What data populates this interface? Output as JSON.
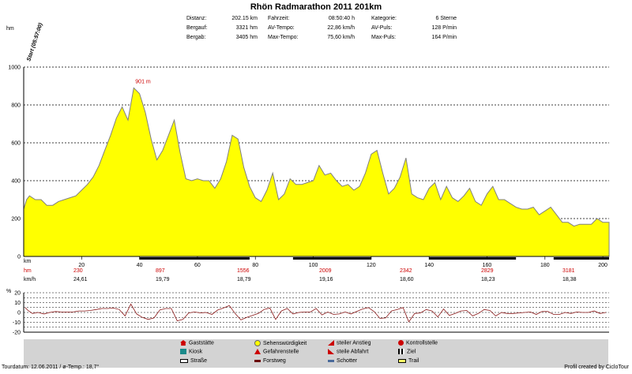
{
  "title": "Rhön Radmarathon 2011 201km",
  "start_label": "Start (05:57:00)",
  "unit_hm": "hm",
  "stats": {
    "distanz_label": "Distanz:",
    "distanz_value": "202.15 km",
    "bergauf_label": "Bergauf:",
    "bergauf_value": "3321 hm",
    "bergab_label": "Bergab:",
    "bergab_value": "3405 hm",
    "fahrzeit_label": "Fahrzeit:",
    "fahrzeit_value": "08:50:40 h",
    "avtempo_label": "AV-Tempo:",
    "avtempo_value": "22,86 km/h",
    "maxtempo_label": "Max-Tempo:",
    "maxtempo_value": "75,60 km/h",
    "kategorie_label": "Kategorie:",
    "kategorie_value": "6 Sterne",
    "avpuls_label": "AV-Puls:",
    "avpuls_value": "128 P/min",
    "maxpuls_label": "Max-Puls:",
    "maxpuls_value": "164 P/min"
  },
  "peak_annotation": "901 m",
  "bottom_rows": {
    "km_label": "km",
    "hm_label": "hm",
    "kmh_label": "km/h",
    "hm_values": [
      "230",
      "897",
      "1556",
      "2009",
      "2342",
      "2829",
      "3181"
    ],
    "kmh_values": [
      "24,61",
      "19,79",
      "18,79",
      "19,16",
      "18,60",
      "18,23",
      "18,38"
    ]
  },
  "gradient_unit": "%",
  "legend": {
    "gaststaette": "Gaststätte",
    "kiosk": "Kiosk",
    "strasse": "Straße",
    "sehenswuerdigkeit": "Sehenswürdigkeit",
    "gefahrenstelle": "Gefahrenstelle",
    "forstweg": "Forstweg",
    "steiler_anstieg": "steiler Anstieg",
    "steile_abfahrt": "steile Abfahrt",
    "schotter": "Schotter",
    "kontrollstelle": "Kontrollstelle",
    "ziel": "Ziel",
    "trail": "Trail"
  },
  "footer_left": "Tourdatum: 12.06.2011 / ø-Temp.: 18,7°",
  "footer_right": "Profil created by CicloTour",
  "colors": {
    "fill": "#ffff00",
    "stroke": "#808080",
    "red": "#cc0000",
    "legend_bg": "#d3d3d3"
  },
  "chart_data": [
    {
      "type": "area",
      "xlabel": "km",
      "ylabel": "hm",
      "xlim": [
        0,
        202.15
      ],
      "ylim": [
        0,
        1000
      ],
      "x_ticks": [
        "20",
        "40",
        "60",
        "80",
        "100",
        "120",
        "140",
        "160",
        "180",
        "200"
      ],
      "y_ticks": [
        "0",
        "200",
        "400",
        "600",
        "800",
        "1000"
      ],
      "grid": true,
      "x": [
        0,
        1,
        2,
        4,
        6,
        8,
        10,
        12,
        14,
        16,
        18,
        20,
        22,
        24,
        26,
        28,
        30,
        32,
        34,
        36,
        38,
        40,
        42,
        44,
        46,
        48,
        50,
        52,
        54,
        56,
        58,
        60,
        62,
        64,
        66,
        68,
        70,
        72,
        74,
        76,
        78,
        80,
        82,
        84,
        86,
        88,
        90,
        92,
        94,
        96,
        98,
        100,
        102,
        104,
        106,
        108,
        110,
        112,
        114,
        116,
        118,
        120,
        122,
        124,
        126,
        128,
        130,
        132,
        134,
        136,
        138,
        140,
        142,
        144,
        146,
        148,
        150,
        152,
        154,
        156,
        158,
        160,
        162,
        164,
        166,
        168,
        170,
        172,
        174,
        176,
        178,
        180,
        182,
        184,
        186,
        188,
        190,
        192,
        194,
        196,
        198,
        200,
        202.15
      ],
      "y": [
        250,
        300,
        320,
        300,
        300,
        270,
        270,
        290,
        300,
        310,
        320,
        350,
        380,
        420,
        480,
        560,
        640,
        730,
        790,
        720,
        890,
        860,
        760,
        620,
        510,
        560,
        640,
        720,
        550,
        410,
        400,
        410,
        400,
        400,
        360,
        410,
        500,
        640,
        620,
        470,
        370,
        310,
        290,
        350,
        440,
        300,
        330,
        410,
        380,
        380,
        390,
        400,
        480,
        430,
        440,
        400,
        370,
        380,
        350,
        370,
        440,
        540,
        560,
        440,
        330,
        360,
        420,
        520,
        330,
        310,
        300,
        360,
        390,
        300,
        370,
        310,
        290,
        320,
        360,
        290,
        270,
        330,
        370,
        300,
        300,
        280,
        260,
        250,
        250,
        260,
        220,
        240,
        260,
        220,
        180,
        180,
        160,
        170,
        170,
        170,
        200,
        180,
        180
      ]
    },
    {
      "type": "line",
      "ylabel": "%",
      "ylim": [
        -20,
        20
      ],
      "y_ticks": [
        "20",
        "10",
        "0",
        "-10",
        "-20"
      ],
      "grid": true
    }
  ]
}
